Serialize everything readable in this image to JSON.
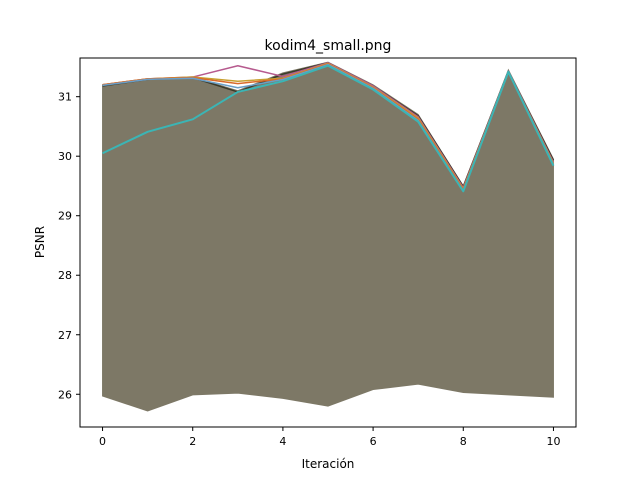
{
  "chart_data": {
    "type": "line",
    "title": "kodim4_small.png",
    "xlabel": "Iteración",
    "ylabel": "PSNR",
    "xlim": [
      -0.5,
      10.5
    ],
    "ylim": [
      25.45,
      31.65
    ],
    "x_ticks": [
      0,
      2,
      4,
      6,
      8,
      10
    ],
    "y_ticks": [
      26,
      27,
      28,
      29,
      30,
      31
    ],
    "grid": false,
    "legend": "none",
    "x": [
      0,
      1,
      2,
      3,
      4,
      5,
      6,
      7,
      8,
      9,
      10
    ],
    "band": {
      "color": "#7d7866",
      "upper": [
        31.2,
        31.3,
        31.33,
        31.1,
        31.4,
        31.58,
        31.2,
        30.7,
        29.5,
        31.45,
        29.95
      ],
      "lower": [
        25.97,
        25.72,
        25.99,
        26.02,
        25.93,
        25.8,
        26.08,
        26.17,
        26.03,
        25.99,
        25.95
      ]
    },
    "series": [
      {
        "color": "#3a3a2a",
        "values": [
          31.18,
          31.29,
          31.32,
          31.08,
          31.38,
          31.57,
          31.18,
          30.68,
          29.49,
          31.43,
          29.93
        ]
      },
      {
        "color": "#b65a8e",
        "values": [
          31.2,
          31.3,
          31.33,
          31.52,
          31.34,
          31.57,
          31.18,
          30.66,
          29.47,
          31.43,
          29.9
        ]
      },
      {
        "color": "#c8a030",
        "values": [
          31.2,
          31.3,
          31.33,
          31.26,
          31.31,
          31.56,
          31.16,
          30.64,
          29.45,
          31.42,
          29.88
        ]
      },
      {
        "color": "#d96a2a",
        "values": [
          31.2,
          31.3,
          31.32,
          31.22,
          31.3,
          31.55,
          31.15,
          30.62,
          29.44,
          31.41,
          29.87
        ]
      },
      {
        "color": "#6a9fc8",
        "values": [
          31.19,
          31.29,
          31.31,
          31.15,
          31.29,
          31.54,
          31.14,
          30.6,
          29.42,
          31.41,
          29.86
        ]
      },
      {
        "color": "#3bb5b5",
        "values": [
          30.05,
          30.41,
          30.62,
          31.08,
          31.26,
          31.52,
          31.12,
          30.58,
          29.41,
          31.42,
          29.84
        ]
      }
    ]
  }
}
